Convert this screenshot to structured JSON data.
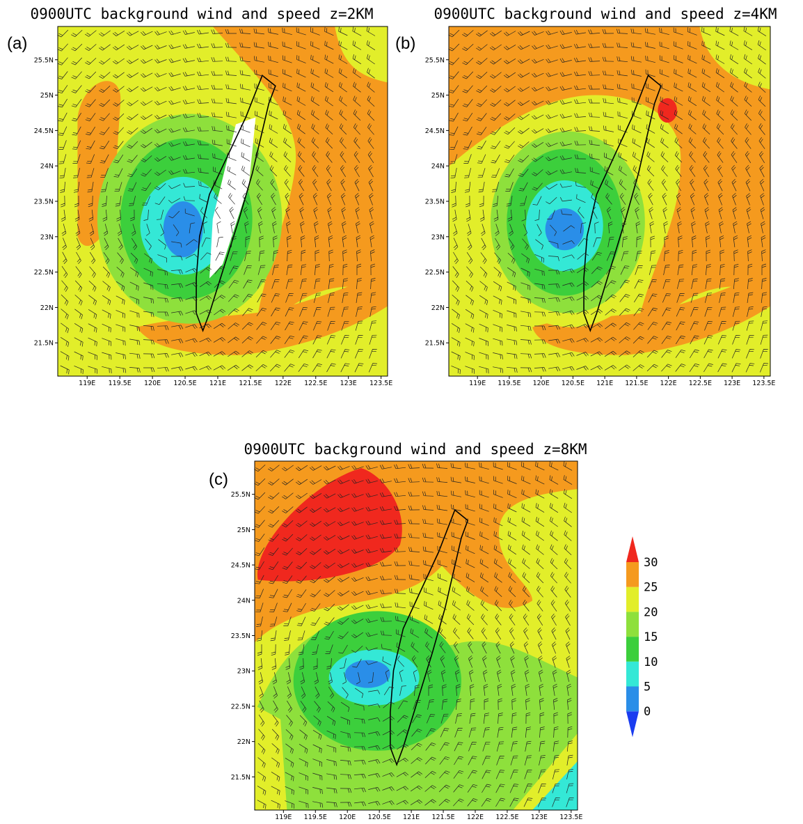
{
  "panels": [
    {
      "label": "(a)",
      "title": "0900UTC background wind and speed z=2KM",
      "xlim": [
        118.55,
        123.6
      ],
      "ylim": [
        21.03,
        25.97
      ],
      "xticks": [
        {
          "value": 119,
          "label": "119E"
        },
        {
          "value": 119.5,
          "label": "119.5E"
        },
        {
          "value": 120,
          "label": "120E"
        },
        {
          "value": 120.5,
          "label": "120.5E"
        },
        {
          "value": 121,
          "label": "121E"
        },
        {
          "value": 121.5,
          "label": "121.5E"
        },
        {
          "value": 122,
          "label": "122E"
        },
        {
          "value": 122.5,
          "label": "122.5E"
        },
        {
          "value": 123,
          "label": "123E"
        },
        {
          "value": 123.5,
          "label": "123.5E"
        }
      ],
      "yticks": [
        {
          "value": 21.5,
          "label": "21.5N"
        },
        {
          "value": 22,
          "label": "22N"
        },
        {
          "value": 22.5,
          "label": "22.5N"
        },
        {
          "value": 23,
          "label": "23N"
        },
        {
          "value": 23.5,
          "label": "23.5N"
        },
        {
          "value": 24,
          "label": "24N"
        },
        {
          "value": 24.5,
          "label": "24.5N"
        },
        {
          "value": 25,
          "label": "25N"
        },
        {
          "value": 25.5,
          "label": "25.5N"
        }
      ]
    },
    {
      "label": "(b)",
      "title": "0900UTC background wind and speed z=4KM",
      "xlim": [
        118.55,
        123.6
      ],
      "ylim": [
        21.03,
        25.97
      ],
      "xticks": [
        {
          "value": 119,
          "label": "119E"
        },
        {
          "value": 119.5,
          "label": "119.5E"
        },
        {
          "value": 120,
          "label": "120E"
        },
        {
          "value": 120.5,
          "label": "120.5E"
        },
        {
          "value": 121,
          "label": "121E"
        },
        {
          "value": 121.5,
          "label": "121.5E"
        },
        {
          "value": 122,
          "label": "122E"
        },
        {
          "value": 122.5,
          "label": "122.5E"
        },
        {
          "value": 123,
          "label": "123E"
        },
        {
          "value": 123.5,
          "label": "123.5E"
        }
      ],
      "yticks": [
        {
          "value": 21.5,
          "label": "21.5N"
        },
        {
          "value": 22,
          "label": "22N"
        },
        {
          "value": 22.5,
          "label": "22.5N"
        },
        {
          "value": 23,
          "label": "23N"
        },
        {
          "value": 23.5,
          "label": "23.5N"
        },
        {
          "value": 24,
          "label": "24N"
        },
        {
          "value": 24.5,
          "label": "24.5N"
        },
        {
          "value": 25,
          "label": "25N"
        },
        {
          "value": 25.5,
          "label": "25.5N"
        }
      ]
    },
    {
      "label": "(c)",
      "title": "0900UTC background wind and speed z=8KM",
      "xlim": [
        118.55,
        123.6
      ],
      "ylim": [
        21.03,
        25.97
      ],
      "xticks": [
        {
          "value": 119,
          "label": "119E"
        },
        {
          "value": 119.5,
          "label": "119.5E"
        },
        {
          "value": 120,
          "label": "120E"
        },
        {
          "value": 120.5,
          "label": "120.5E"
        },
        {
          "value": 121,
          "label": "121E"
        },
        {
          "value": 121.5,
          "label": "121.5E"
        },
        {
          "value": 122,
          "label": "122E"
        },
        {
          "value": 122.5,
          "label": "122.5E"
        },
        {
          "value": 123,
          "label": "123E"
        },
        {
          "value": 123.5,
          "label": "123.5E"
        }
      ],
      "yticks": [
        {
          "value": 21.5,
          "label": "21.5N"
        },
        {
          "value": 22,
          "label": "22N"
        },
        {
          "value": 22.5,
          "label": "22.5N"
        },
        {
          "value": 23,
          "label": "23N"
        },
        {
          "value": 23.5,
          "label": "23.5N"
        },
        {
          "value": 24,
          "label": "24N"
        },
        {
          "value": 24.5,
          "label": "24.5N"
        },
        {
          "value": 25,
          "label": "25N"
        },
        {
          "value": 25.5,
          "label": "25.5N"
        }
      ]
    }
  ],
  "colorbar": {
    "levels": [
      0,
      5,
      10,
      15,
      20,
      25,
      30
    ],
    "colors": [
      "#1a3cf0",
      "#2a8ee8",
      "#34e8d6",
      "#3ccf3c",
      "#8ee03c",
      "#e2ee2a",
      "#f59a1e",
      "#f0281e"
    ]
  }
}
